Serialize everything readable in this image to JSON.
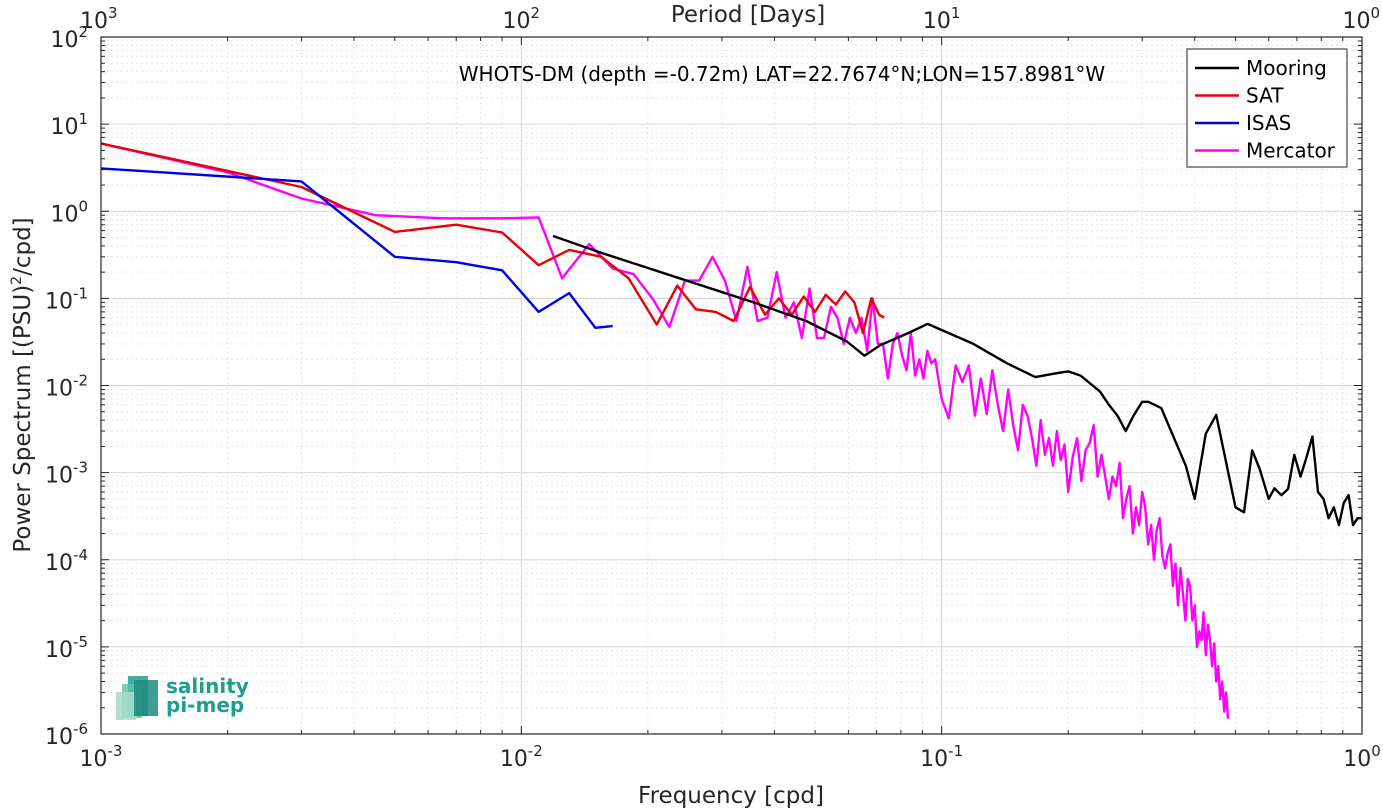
{
  "chart_data": {
    "type": "line",
    "title": "",
    "annotation": "WHOTS-DM (depth =-0.72m) LAT=22.7674°N;LON=157.8981°W",
    "xlabel": "Frequency [cpd]",
    "ylabel_main": "Power Spectrum [(PSU)",
    "ylabel_sup": "2",
    "ylabel_tail": "/cpd]",
    "top_xlabel": "Period [Days]",
    "xscale": "log",
    "yscale": "log",
    "xlim": [
      0.001,
      1
    ],
    "ylim": [
      1e-06,
      100
    ],
    "grid": true,
    "legend_position": "top-right",
    "x_ticks": [
      {
        "v": 0.001,
        "base": "10",
        "exp": "-3"
      },
      {
        "v": 0.01,
        "base": "10",
        "exp": "-2"
      },
      {
        "v": 0.1,
        "base": "10",
        "exp": "-1"
      },
      {
        "v": 1,
        "base": "10",
        "exp": "0"
      }
    ],
    "y_ticks": [
      {
        "v": 1e-06,
        "base": "10",
        "exp": "-6"
      },
      {
        "v": 1e-05,
        "base": "10",
        "exp": "-5"
      },
      {
        "v": 0.0001,
        "base": "10",
        "exp": "-4"
      },
      {
        "v": 0.001,
        "base": "10",
        "exp": "-3"
      },
      {
        "v": 0.01,
        "base": "10",
        "exp": "-2"
      },
      {
        "v": 0.1,
        "base": "10",
        "exp": "-1"
      },
      {
        "v": 1,
        "base": "10",
        "exp": "0"
      },
      {
        "v": 10,
        "base": "10",
        "exp": "1"
      },
      {
        "v": 100,
        "base": "10",
        "exp": "2"
      }
    ],
    "top_ticks": [
      {
        "v": 0.001,
        "base": "10",
        "exp": "3"
      },
      {
        "v": 0.01,
        "base": "10",
        "exp": "2"
      },
      {
        "v": 0.1,
        "base": "10",
        "exp": "1"
      },
      {
        "v": 1,
        "base": "10",
        "exp": "0"
      }
    ],
    "series": [
      {
        "name": "Mooring",
        "color": "#000000",
        "x": [
          0.0119,
          0.0156,
          0.0238,
          0.0357,
          0.0476,
          0.0595,
          0.0655,
          0.0714,
          0.0833,
          0.0926,
          0.119,
          0.143,
          0.167,
          0.19,
          0.2,
          0.214,
          0.238,
          0.25,
          0.262,
          0.274,
          0.286,
          0.3,
          0.31,
          0.333,
          0.357,
          0.381,
          0.4,
          0.425,
          0.45,
          0.5,
          0.524,
          0.548,
          0.571,
          0.6,
          0.619,
          0.643,
          0.667,
          0.69,
          0.714,
          0.738,
          0.762,
          0.786,
          0.81,
          0.833,
          0.857,
          0.881,
          0.905,
          0.929,
          0.952,
          0.976,
          1.0
        ],
        "y": [
          0.52,
          0.33,
          0.17,
          0.09,
          0.055,
          0.032,
          0.022,
          0.029,
          0.04,
          0.051,
          0.03,
          0.018,
          0.0125,
          0.014,
          0.0145,
          0.013,
          0.0085,
          0.006,
          0.0045,
          0.003,
          0.0045,
          0.0065,
          0.0065,
          0.0055,
          0.0025,
          0.0012,
          0.0005,
          0.0028,
          0.0046,
          0.0004,
          0.00035,
          0.0018,
          0.0011,
          0.0005,
          0.00066,
          0.00055,
          0.00065,
          0.0016,
          0.0009,
          0.0015,
          0.0026,
          0.0006,
          0.0005,
          0.0003,
          0.0004,
          0.00025,
          0.00045,
          0.00055,
          0.00025,
          0.0003,
          0.0003
        ]
      },
      {
        "name": "SAT",
        "color": "#e8000b",
        "x": [
          0.001,
          0.003,
          0.005,
          0.007,
          0.009,
          0.011,
          0.013,
          0.0155,
          0.018,
          0.021,
          0.0235,
          0.026,
          0.029,
          0.032,
          0.035,
          0.038,
          0.041,
          0.044,
          0.047,
          0.05,
          0.053,
          0.056,
          0.059,
          0.062,
          0.065,
          0.068,
          0.071,
          0.073
        ],
        "y": [
          6.0,
          1.9,
          0.58,
          0.7,
          0.57,
          0.24,
          0.36,
          0.3,
          0.17,
          0.05,
          0.14,
          0.075,
          0.07,
          0.055,
          0.135,
          0.065,
          0.1,
          0.065,
          0.105,
          0.07,
          0.11,
          0.085,
          0.12,
          0.09,
          0.04,
          0.1,
          0.065,
          0.06
        ]
      },
      {
        "name": "ISAS",
        "color": "#0000e8",
        "x": [
          0.001,
          0.003,
          0.005,
          0.007,
          0.009,
          0.011,
          0.013,
          0.015,
          0.0165
        ],
        "y": [
          3.1,
          2.2,
          0.3,
          0.26,
          0.21,
          0.07,
          0.115,
          0.046,
          0.048
        ]
      },
      {
        "name": "Mercator",
        "color": "#ff00ff",
        "x": [
          0.001,
          0.002,
          0.003,
          0.0045,
          0.0065,
          0.009,
          0.011,
          0.0125,
          0.0145,
          0.0165,
          0.0185,
          0.0205,
          0.0225,
          0.0245,
          0.0265,
          0.0285,
          0.0305,
          0.0325,
          0.0345,
          0.0365,
          0.0385,
          0.0405,
          0.0425,
          0.0445,
          0.0465,
          0.0485,
          0.0505,
          0.0525,
          0.0545,
          0.0565,
          0.0585,
          0.0605,
          0.0625,
          0.0645,
          0.0665,
          0.0685,
          0.0705,
          0.0725,
          0.0745,
          0.0765,
          0.0785,
          0.0805,
          0.0825,
          0.0845,
          0.0865,
          0.0885,
          0.0905,
          0.0925,
          0.0945,
          0.0965,
          0.1,
          0.104,
          0.108,
          0.112,
          0.116,
          0.12,
          0.124,
          0.128,
          0.132,
          0.136,
          0.14,
          0.144,
          0.148,
          0.152,
          0.156,
          0.16,
          0.164,
          0.168,
          0.172,
          0.176,
          0.18,
          0.184,
          0.188,
          0.192,
          0.196,
          0.2,
          0.205,
          0.21,
          0.215,
          0.22,
          0.225,
          0.23,
          0.235,
          0.24,
          0.245,
          0.25,
          0.255,
          0.26,
          0.265,
          0.27,
          0.275,
          0.28,
          0.285,
          0.29,
          0.295,
          0.3,
          0.305,
          0.31,
          0.315,
          0.32,
          0.325,
          0.33,
          0.335,
          0.34,
          0.345,
          0.35,
          0.355,
          0.36,
          0.365,
          0.37,
          0.375,
          0.38,
          0.385,
          0.39,
          0.395,
          0.4,
          0.405,
          0.41,
          0.415,
          0.42,
          0.425,
          0.43,
          0.435,
          0.44,
          0.445,
          0.45,
          0.455,
          0.46,
          0.465,
          0.47,
          0.475,
          0.48
        ],
        "y": [
          6.0,
          2.8,
          1.4,
          0.9,
          0.83,
          0.83,
          0.85,
          0.17,
          0.42,
          0.22,
          0.19,
          0.1,
          0.047,
          0.16,
          0.16,
          0.3,
          0.16,
          0.055,
          0.23,
          0.055,
          0.06,
          0.2,
          0.06,
          0.09,
          0.035,
          0.13,
          0.035,
          0.035,
          0.08,
          0.06,
          0.03,
          0.06,
          0.04,
          0.06,
          0.025,
          0.1,
          0.03,
          0.03,
          0.012,
          0.03,
          0.04,
          0.022,
          0.015,
          0.04,
          0.013,
          0.02,
          0.012,
          0.025,
          0.018,
          0.02,
          0.007,
          0.0042,
          0.017,
          0.011,
          0.017,
          0.0045,
          0.012,
          0.0047,
          0.015,
          0.006,
          0.003,
          0.009,
          0.0035,
          0.0018,
          0.006,
          0.0045,
          0.0025,
          0.0012,
          0.004,
          0.0016,
          0.0025,
          0.0012,
          0.003,
          0.0014,
          0.0021,
          0.0006,
          0.0015,
          0.0025,
          0.0008,
          0.0018,
          0.0022,
          0.0035,
          0.0009,
          0.0016,
          0.0009,
          0.0005,
          0.0009,
          0.0007,
          0.0013,
          0.0003,
          0.0005,
          0.0007,
          0.0002,
          0.0004,
          0.00025,
          0.0006,
          0.0004,
          0.00015,
          0.00025,
          0.0001,
          0.00022,
          0.0003,
          0.00011,
          8e-05,
          0.00012,
          0.00015,
          5e-05,
          9e-05,
          3e-05,
          8e-05,
          4e-05,
          2e-05,
          6e-05,
          5e-05,
          2e-05,
          3e-05,
          1e-05,
          1.5e-05,
          1.2e-05,
          2.5e-05,
          8e-06,
          1.8e-05,
          1.2e-05,
          6e-06,
          1.1e-05,
          4e-06,
          6e-06,
          2.5e-06,
          4e-06,
          1.8e-06,
          3e-06,
          1.5e-06
        ]
      }
    ]
  },
  "logo": {
    "line1": "salinity",
    "line2": "pi-mep"
  }
}
